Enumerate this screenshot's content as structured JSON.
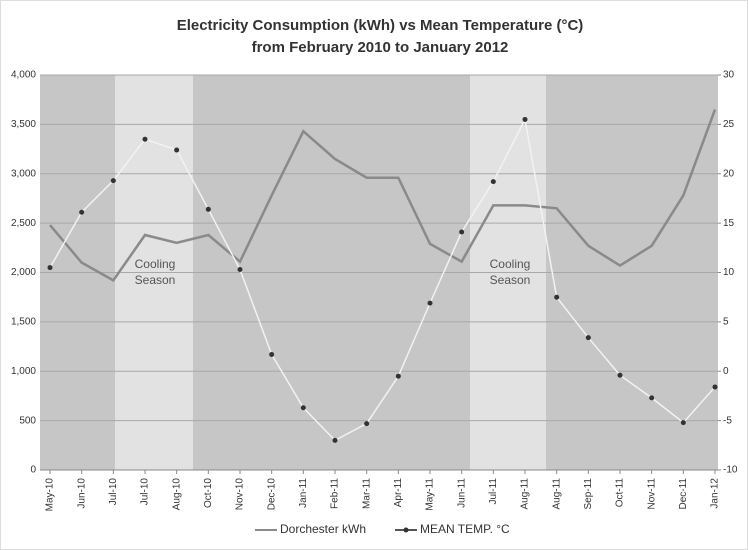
{
  "chart_data": {
    "type": "line",
    "title": "Electricity Consumption (kWh) vs Mean Temperature (°C)",
    "subtitle": "from February 2010 to January 2012",
    "categories": [
      "May-10",
      "Jun-10",
      "Jul-10",
      "Jul-10",
      "Aug-10",
      "Oct-10",
      "Nov-10",
      "Dec-10",
      "Jan-11",
      "Feb-11",
      "Mar-11",
      "Apr-11",
      "May-11",
      "Jun-11",
      "Jul-11",
      "Aug-11",
      "Aug-11",
      "Sep-11",
      "Oct-11",
      "Nov-11",
      "Dec-11",
      "Jan-12"
    ],
    "series": [
      {
        "name": "Dorchester kWh",
        "color": "#8a8a8a",
        "values": [
          2480,
          2100,
          1920,
          2380,
          2300,
          2380,
          2110,
          2780,
          3430,
          3150,
          2960,
          2960,
          2290,
          2110,
          2680,
          2680,
          2650,
          2270,
          2070,
          2270,
          2780,
          3650
        ]
      },
      {
        "name": "MEAN TEMP. °C",
        "color": "#f2f2f2",
        "axis": "y2",
        "values": [
          10.5,
          16.1,
          19.3,
          23.5,
          22.4,
          16.4,
          10.3,
          1.7,
          -3.7,
          -7.0,
          -5.3,
          -0.5,
          6.9,
          14.1,
          19.2,
          25.5,
          7.5,
          3.4,
          -0.4,
          -2.7,
          -5.2,
          -1.6
        ]
      }
    ],
    "ylim": [
      0,
      4000
    ],
    "yticks": [
      0,
      {
        "value": 500,
        "label": "500"
      },
      {
        "value": 1000,
        "label": "1,000"
      },
      {
        "value": 1500,
        "label": "1,500"
      },
      {
        "value": 2000,
        "label": "2,000"
      },
      {
        "value": 2500,
        "label": "2,500"
      },
      {
        "value": 3000,
        "label": "3,000"
      },
      {
        "value": 3500,
        "label": "3,500"
      },
      {
        "value": 4000,
        "label": "4,000"
      }
    ],
    "y2lim": [
      -10,
      30
    ],
    "y2ticks": [
      -10,
      -5,
      0,
      5,
      10,
      15,
      20,
      25,
      30
    ],
    "grid": true,
    "legend": "bottom",
    "annotations": [
      "Cooling Season",
      "Cooling Season"
    ]
  }
}
